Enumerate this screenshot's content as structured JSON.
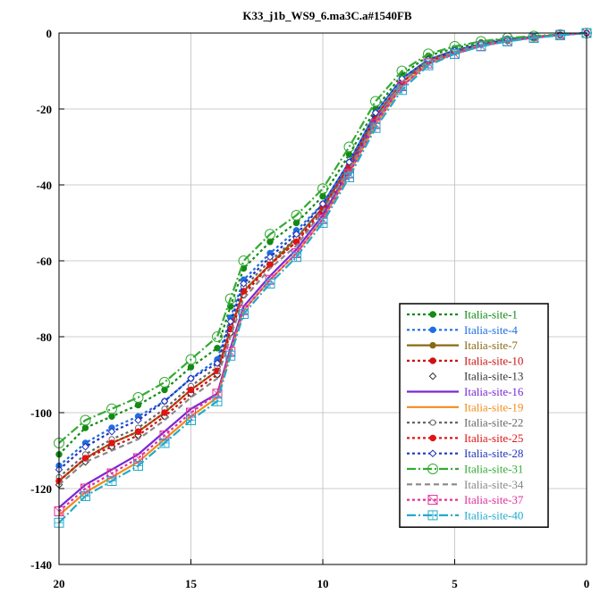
{
  "chart_data": {
    "type": "line",
    "title": "K33_j1b_WS9_6.ma3C.a#1540FB",
    "xlabel": "",
    "ylabel": "",
    "xlim": [
      20,
      0
    ],
    "ylim": [
      -140,
      0
    ],
    "x_ticks": [
      "20",
      "15",
      "10",
      "5",
      "0"
    ],
    "y_ticks": [
      "0",
      "-20",
      "-40",
      "-60",
      "-80",
      "-100",
      "-120",
      "-140"
    ],
    "grid": true,
    "legend_position": "bottom-right",
    "series": [
      {
        "name": "Italia-site-1",
        "color": "#138a13",
        "style": "dot-filled-circle",
        "x": [
          20,
          19,
          18,
          17,
          16,
          15,
          14,
          13.5,
          13,
          12,
          11,
          10,
          9,
          8,
          7,
          6,
          5,
          4,
          3,
          2,
          1,
          0
        ],
        "y": [
          -111,
          -104,
          -101,
          -98,
          -94,
          -88,
          -83,
          -72,
          -62,
          -55,
          -50,
          -43,
          -32,
          -20,
          -11,
          -6,
          -4,
          -2.5,
          -1.5,
          -1,
          -0.5,
          0
        ]
      },
      {
        "name": "Italia-site-4",
        "color": "#1e6fe0",
        "style": "dot-filled-circle",
        "x": [
          20,
          19,
          18,
          17,
          16,
          15,
          14,
          13.5,
          13,
          12,
          11,
          10,
          9,
          8,
          7,
          6,
          5,
          4,
          3,
          2,
          1,
          0
        ],
        "y": [
          -114,
          -108,
          -104,
          -101,
          -97,
          -91,
          -86,
          -75,
          -65,
          -58,
          -52,
          -45,
          -34,
          -21,
          -12,
          -7,
          -4.5,
          -3,
          -1.7,
          -1,
          -0.5,
          0
        ]
      },
      {
        "name": "Italia-site-7",
        "color": "#8b6914",
        "style": "solid-filled-circle",
        "x": [
          20,
          19,
          18,
          17,
          16,
          15,
          14,
          13.5,
          13,
          12,
          11,
          10,
          9,
          8,
          7,
          6,
          5,
          4,
          3,
          2,
          1,
          0
        ],
        "y": [
          -118,
          -112,
          -108,
          -105,
          -100,
          -94,
          -89,
          -78,
          -68,
          -61,
          -54,
          -46,
          -35,
          -22,
          -13,
          -7,
          -5,
          -3,
          -2,
          -1,
          -0.5,
          0
        ]
      },
      {
        "name": "Italia-site-10",
        "color": "#cc1111",
        "style": "dot-filled-circle",
        "x": [
          20,
          19,
          18,
          17,
          16,
          15,
          14,
          13.5,
          13,
          12,
          11,
          10,
          9,
          8,
          7,
          6,
          5,
          4,
          3,
          2,
          1,
          0
        ],
        "y": [
          -118,
          -112,
          -109,
          -106,
          -101,
          -95,
          -90,
          -79,
          -69,
          -61,
          -55,
          -47,
          -36,
          -22,
          -13,
          -7.5,
          -5,
          -3,
          -2,
          -1.2,
          -0.5,
          0
        ]
      },
      {
        "name": "Italia-site-13",
        "color": "#333333",
        "style": "none-open-diamond",
        "x": [
          20,
          19,
          18,
          17,
          16,
          15,
          14,
          13.5,
          13,
          12,
          11,
          10,
          9,
          8,
          7,
          6,
          5,
          4,
          3,
          2,
          1,
          0
        ],
        "y": [
          -119,
          -113,
          -109,
          -106,
          -101,
          -95,
          -90,
          -79,
          -69,
          -61,
          -55,
          -46,
          -35,
          -22,
          -13,
          -7.5,
          -5,
          -3,
          -2,
          -1.2,
          -0.5,
          0
        ]
      },
      {
        "name": "Italia-site-16",
        "color": "#7a28d4",
        "style": "solid-none",
        "x": [
          20,
          19,
          18,
          17,
          16,
          15,
          14,
          13.5,
          13,
          12,
          11,
          10,
          9,
          8,
          7,
          6,
          5,
          4,
          3,
          2,
          1,
          0
        ],
        "y": [
          -125,
          -119,
          -115,
          -111,
          -105,
          -99,
          -95,
          -83,
          -72,
          -64,
          -57,
          -48,
          -36,
          -23,
          -14,
          -8,
          -5,
          -3.2,
          -2,
          -1.2,
          -0.5,
          0
        ]
      },
      {
        "name": "Italia-site-19",
        "color": "#f08c1a",
        "style": "solid-none",
        "x": [
          20,
          19,
          18,
          17,
          16,
          15,
          14,
          13.5,
          13,
          12,
          11,
          10,
          9,
          8,
          7,
          6,
          5,
          4,
          3,
          2,
          1,
          0
        ],
        "y": [
          -127,
          -121,
          -117,
          -113,
          -107,
          -101,
          -96,
          -84,
          -73,
          -65,
          -58,
          -49,
          -37,
          -24,
          -14,
          -8,
          -5.5,
          -3.4,
          -2.1,
          -1.2,
          -0.5,
          0
        ]
      },
      {
        "name": "Italia-site-22",
        "color": "#666666",
        "style": "dot-open-circle",
        "x": [
          20,
          19,
          18,
          17,
          16,
          15,
          14,
          13.5,
          13,
          12,
          11,
          10,
          9,
          8,
          7,
          6,
          5,
          4,
          3,
          2,
          1,
          0
        ],
        "y": [
          -117,
          -111,
          -107,
          -104,
          -99,
          -93,
          -88,
          -77,
          -67,
          -60,
          -54,
          -46,
          -35,
          -22,
          -13,
          -7,
          -4.8,
          -3,
          -1.9,
          -1.1,
          -0.5,
          0
        ]
      },
      {
        "name": "Italia-site-25",
        "color": "#e01414",
        "style": "dot-filled-circle",
        "x": [
          20,
          19,
          18,
          17,
          16,
          15,
          14,
          13.5,
          13,
          12,
          11,
          10,
          9,
          8,
          7,
          6,
          5,
          4,
          3,
          2,
          1,
          0
        ],
        "y": [
          -118,
          -112,
          -108,
          -105,
          -100,
          -94,
          -89,
          -78,
          -68,
          -61,
          -55,
          -46,
          -35,
          -22,
          -13,
          -7.5,
          -5,
          -3,
          -2,
          -1.2,
          -0.5,
          0
        ]
      },
      {
        "name": "Italia-site-28",
        "color": "#2233bb",
        "style": "dot-open-diamond",
        "x": [
          20,
          19,
          18,
          17,
          16,
          15,
          14,
          13.5,
          13,
          12,
          11,
          10,
          9,
          8,
          7,
          6,
          5,
          4,
          3,
          2,
          1,
          0
        ],
        "y": [
          -115,
          -109,
          -105,
          -102,
          -97,
          -91,
          -87,
          -76,
          -66,
          -59,
          -53,
          -45,
          -34,
          -21,
          -12,
          -7,
          -4.6,
          -2.9,
          -1.8,
          -1,
          -0.5,
          0
        ]
      },
      {
        "name": "Italia-site-31",
        "color": "#33aa33",
        "style": "dashdot-open-circle-large",
        "x": [
          20,
          19,
          18,
          17,
          16,
          15,
          14,
          13.5,
          13,
          12,
          11,
          10,
          9,
          8,
          7,
          6,
          5,
          4,
          3,
          2,
          1,
          0
        ],
        "y": [
          -108,
          -102,
          -99,
          -96,
          -92,
          -86,
          -80,
          -70,
          -60,
          -53,
          -48,
          -41,
          -30,
          -18,
          -10,
          -5.5,
          -3.5,
          -2.2,
          -1.3,
          -0.8,
          -0.4,
          0
        ]
      },
      {
        "name": "Italia-site-34",
        "color": "#888888",
        "style": "dash-none",
        "x": [
          20,
          19,
          18,
          17,
          16,
          15,
          14,
          13.5,
          13,
          12,
          11,
          10,
          9,
          8,
          7,
          6,
          5,
          4,
          3,
          2,
          1,
          0
        ],
        "y": [
          -119,
          -113,
          -110,
          -107,
          -102,
          -96,
          -91,
          -80,
          -70,
          -62,
          -56,
          -47,
          -36,
          -23,
          -13,
          -7.5,
          -5,
          -3.1,
          -2,
          -1.2,
          -0.5,
          0
        ]
      },
      {
        "name": "Italia-site-37",
        "color": "#e0309a",
        "style": "dot-open-square-x",
        "x": [
          20,
          19,
          18,
          17,
          16,
          15,
          14,
          13.5,
          13,
          12,
          11,
          10,
          9,
          8,
          7,
          6,
          5,
          4,
          3,
          2,
          1,
          0
        ],
        "y": [
          -126,
          -120,
          -116,
          -112,
          -106,
          -100,
          -95,
          -84,
          -73,
          -65,
          -58,
          -49,
          -37,
          -24,
          -14,
          -8,
          -5.5,
          -3.4,
          -2.1,
          -1.2,
          -0.5,
          0
        ]
      },
      {
        "name": "Italia-site-40",
        "color": "#22aacc",
        "style": "dashdot-open-square-plus",
        "x": [
          20,
          19,
          18,
          17,
          16,
          15,
          14,
          13.5,
          13,
          12,
          11,
          10,
          9,
          8,
          7,
          6,
          5,
          4,
          3,
          2,
          1,
          0
        ],
        "y": [
          -129,
          -122,
          -118,
          -114,
          -108,
          -102,
          -97,
          -85,
          -74,
          -66,
          -59,
          -50,
          -38,
          -25,
          -15,
          -8.5,
          -5.5,
          -3.5,
          -2.2,
          -1.3,
          -0.6,
          0
        ]
      }
    ]
  }
}
